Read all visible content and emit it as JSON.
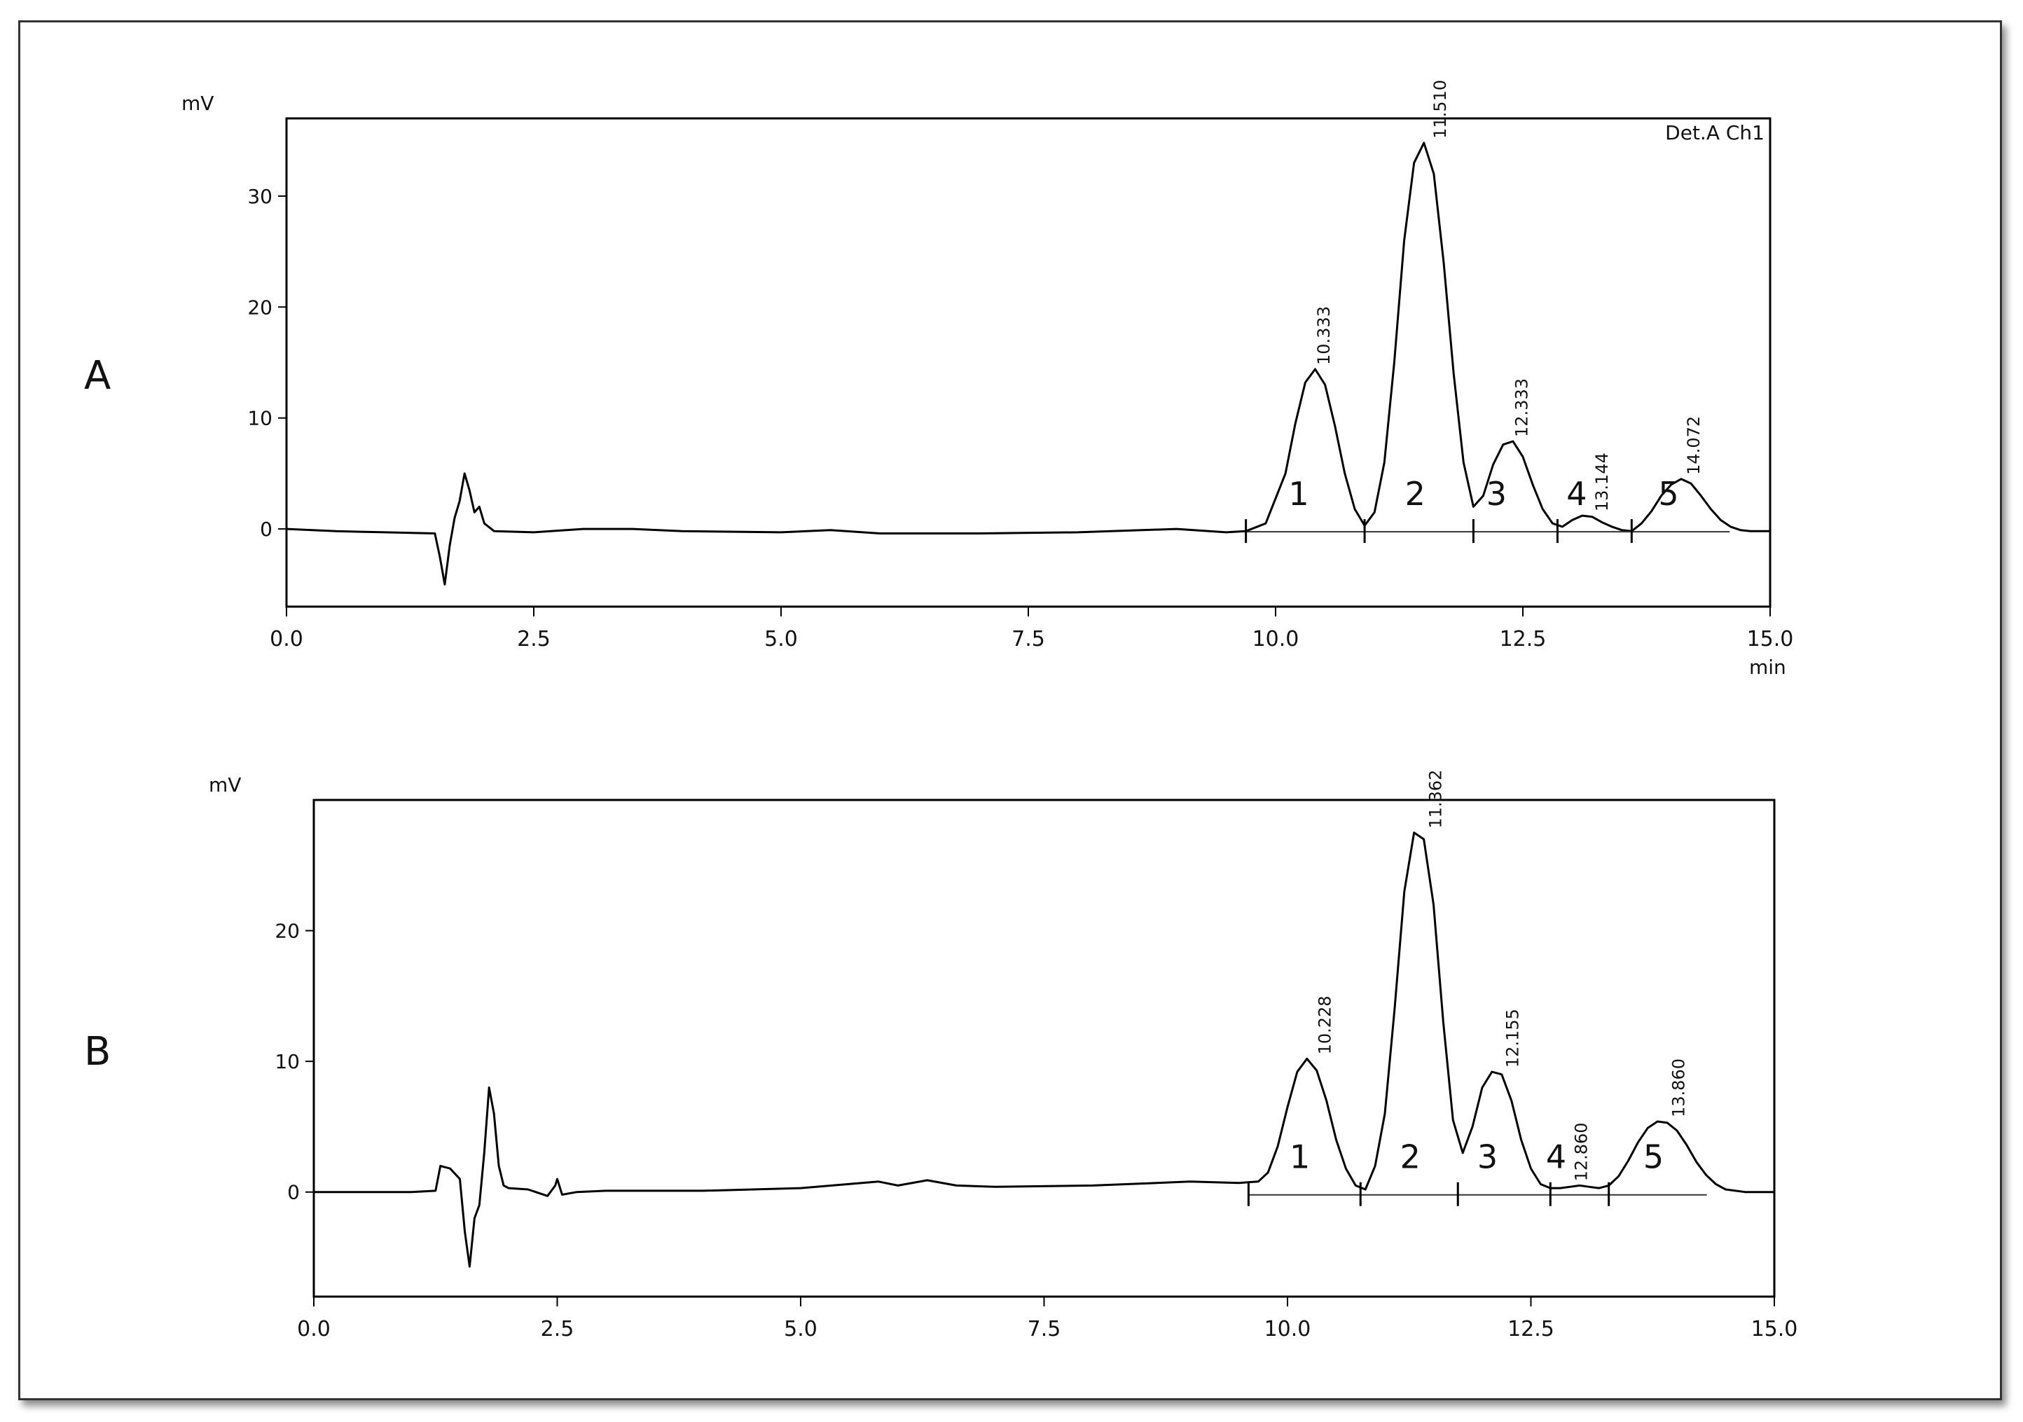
{
  "chart_data": [
    {
      "type": "line",
      "panel": "A",
      "y_label": "mV",
      "x_label": "min",
      "corner_label": "Det.A Ch1",
      "color": "#000000",
      "xlim": [
        0,
        15
      ],
      "ylim": [
        -7,
        37
      ],
      "xticks": [
        {
          "value": 0,
          "label": "0.0"
        },
        2.5,
        {
          "value": 5,
          "label": "5.0"
        },
        7.5,
        {
          "value": 10,
          "label": "10.0"
        },
        12.5,
        {
          "value": 15,
          "label": "15.0"
        }
      ],
      "yticks": [
        0,
        10,
        20,
        30
      ],
      "x": [
        0,
        0.5,
        1.0,
        1.5,
        1.55,
        1.6,
        1.65,
        1.7,
        1.75,
        1.8,
        1.85,
        1.9,
        1.95,
        2.0,
        2.1,
        2.5,
        3.0,
        3.5,
        4.0,
        5.0,
        5.5,
        6.0,
        7.0,
        8.0,
        9.0,
        9.5,
        9.7,
        9.9,
        10.1,
        10.2,
        10.3,
        10.4,
        10.5,
        10.6,
        10.7,
        10.8,
        10.9,
        11.0,
        11.1,
        11.2,
        11.3,
        11.4,
        11.5,
        11.6,
        11.7,
        11.8,
        11.9,
        12.0,
        12.1,
        12.2,
        12.3,
        12.4,
        12.5,
        12.6,
        12.7,
        12.8,
        12.9,
        13.0,
        13.1,
        13.2,
        13.3,
        13.4,
        13.5,
        13.6,
        13.7,
        13.8,
        13.9,
        14.0,
        14.1,
        14.2,
        14.3,
        14.4,
        14.5,
        14.6,
        14.7,
        14.8,
        15.0
      ],
      "values": [
        0,
        -0.2,
        -0.3,
        -0.4,
        -2.5,
        -5,
        -1.5,
        1,
        2.5,
        5,
        3.5,
        1.5,
        2,
        0.5,
        -0.2,
        -0.3,
        0,
        0,
        -0.2,
        -0.3,
        -0.1,
        -0.4,
        -0.4,
        -0.3,
        0,
        -0.3,
        -0.2,
        0.5,
        5,
        9.5,
        13.2,
        14.4,
        13,
        9.3,
        5,
        1.8,
        0.3,
        1.5,
        6,
        15,
        26,
        33,
        34.8,
        32,
        24,
        14,
        6,
        2,
        3,
        5.8,
        7.6,
        7.9,
        6.5,
        4,
        1.8,
        0.5,
        0.2,
        0.8,
        1.2,
        1.1,
        0.6,
        0.2,
        -0.1,
        -0.2,
        0.5,
        1.6,
        3,
        4,
        4.5,
        4.1,
        3,
        1.8,
        0.8,
        0.2,
        -0.1,
        -0.2,
        -0.2
      ],
      "peaks": [
        {
          "x": 10.333,
          "label": "10.333",
          "height": 14.4,
          "number": "1"
        },
        {
          "x": 11.51,
          "label": "11.510",
          "height": 34.8,
          "number": "2"
        },
        {
          "x": 12.333,
          "label": "12.333",
          "height": 7.9,
          "number": "3"
        },
        {
          "x": 13.144,
          "label": "13.144",
          "height": 1.2,
          "number": "4"
        },
        {
          "x": 14.072,
          "label": "14.072",
          "height": 4.5,
          "number": "5"
        }
      ],
      "boundaries": [
        9.7,
        10.9,
        12.0,
        12.85,
        13.6
      ]
    },
    {
      "type": "line",
      "panel": "B",
      "y_label": "mV",
      "color": "#000000",
      "xlim": [
        0,
        15
      ],
      "ylim": [
        -8,
        30
      ],
      "xticks": [
        {
          "value": 0,
          "label": "0.0"
        },
        2.5,
        {
          "value": 5,
          "label": "5.0"
        },
        7.5,
        {
          "value": 10,
          "label": "10.0"
        },
        12.5,
        {
          "value": 15,
          "label": "15.0"
        }
      ],
      "yticks": [
        0,
        10,
        20
      ],
      "x": [
        0,
        0.5,
        1.0,
        1.25,
        1.3,
        1.4,
        1.5,
        1.55,
        1.6,
        1.65,
        1.7,
        1.75,
        1.8,
        1.85,
        1.9,
        1.95,
        2.0,
        2.2,
        2.4,
        2.48,
        2.5,
        2.55,
        2.7,
        3.0,
        4.0,
        5.0,
        5.8,
        6.0,
        6.3,
        6.6,
        7.0,
        8.0,
        9.0,
        9.5,
        9.7,
        9.8,
        9.9,
        10.0,
        10.1,
        10.2,
        10.3,
        10.4,
        10.5,
        10.6,
        10.7,
        10.8,
        10.9,
        11.0,
        11.1,
        11.2,
        11.3,
        11.4,
        11.5,
        11.6,
        11.7,
        11.8,
        11.9,
        12.0,
        12.1,
        12.2,
        12.3,
        12.4,
        12.5,
        12.6,
        12.7,
        12.8,
        12.9,
        13.0,
        13.1,
        13.2,
        13.3,
        13.4,
        13.5,
        13.6,
        13.7,
        13.8,
        13.9,
        14.0,
        14.1,
        14.2,
        14.3,
        14.4,
        14.5,
        14.7,
        15.0
      ],
      "values": [
        0,
        0,
        0,
        0.1,
        2,
        1.8,
        1,
        -3,
        -5.7,
        -2,
        -1,
        3,
        8,
        6,
        2,
        0.5,
        0.3,
        0.2,
        -0.3,
        0.5,
        1.0,
        -0.2,
        0,
        0.1,
        0.1,
        0.3,
        0.8,
        0.5,
        0.9,
        0.5,
        0.4,
        0.5,
        0.8,
        0.7,
        0.8,
        1.5,
        3.5,
        6.5,
        9.2,
        10.2,
        9.3,
        7,
        4,
        1.8,
        0.5,
        0.2,
        2,
        6,
        14,
        23,
        27.5,
        27,
        22,
        13,
        5.5,
        3,
        5,
        8,
        9.2,
        9,
        7,
        4,
        1.8,
        0.6,
        0.3,
        0.3,
        0.4,
        0.5,
        0.4,
        0.3,
        0.5,
        1.2,
        2.4,
        3.8,
        4.9,
        5.4,
        5.3,
        4.7,
        3.6,
        2.3,
        1.3,
        0.6,
        0.2,
        0,
        0
      ],
      "peaks": [
        {
          "x": 10.228,
          "label": "10.228",
          "height": 10.2,
          "number": "1"
        },
        {
          "x": 11.362,
          "label": "11.362",
          "height": 27.5,
          "number": "2"
        },
        {
          "x": 12.155,
          "label": "12.155",
          "height": 9.2,
          "number": "3"
        },
        {
          "x": 12.86,
          "label": "12.860",
          "height": 0.5,
          "number": "4"
        },
        {
          "x": 13.86,
          "label": "13.860",
          "height": 5.4,
          "number": "5"
        }
      ],
      "boundaries": [
        9.6,
        10.75,
        11.75,
        12.7,
        13.3
      ]
    }
  ]
}
